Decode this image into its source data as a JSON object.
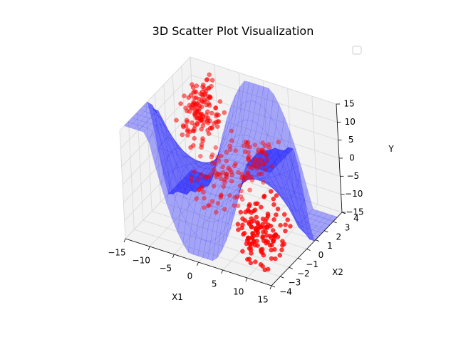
{
  "chart_data": {
    "type": "scatter",
    "title": "3D Scatter Plot Visualization",
    "xlabel": "X1",
    "ylabel": "X2",
    "zlabel": "Y",
    "xlim": [
      -15,
      15
    ],
    "ylim": [
      -4,
      4
    ],
    "zlim": [
      -15,
      15
    ],
    "x_ticks": [
      -15,
      -10,
      -5,
      0,
      5,
      10,
      15
    ],
    "y_ticks": [
      -4,
      -3,
      -2,
      -1,
      0,
      1,
      2,
      3,
      4
    ],
    "z_ticks": [
      -15,
      -10,
      -5,
      0,
      5,
      10,
      15
    ],
    "grid": true,
    "legend": {
      "position": "top-right",
      "entries": []
    },
    "colors": {
      "points": "#ff0000",
      "surface": "#0000ff"
    },
    "surface": {
      "kind": "fitted surface",
      "x_range": [
        -15,
        15
      ],
      "y_range": [
        -3.5,
        3.5
      ]
    },
    "points": {
      "count": 400,
      "clusters": [
        {
          "x": [
            -12,
            -7
          ],
          "y": [
            0.5,
            3.5
          ],
          "z": [
            0,
            14
          ]
        },
        {
          "x": [
            -5,
            5
          ],
          "y": [
            -3,
            3
          ],
          "z": [
            -4,
            4
          ]
        },
        {
          "x": [
            7,
            13
          ],
          "y": [
            -3.5,
            -0.5
          ],
          "z": [
            -14,
            0
          ]
        }
      ]
    }
  }
}
